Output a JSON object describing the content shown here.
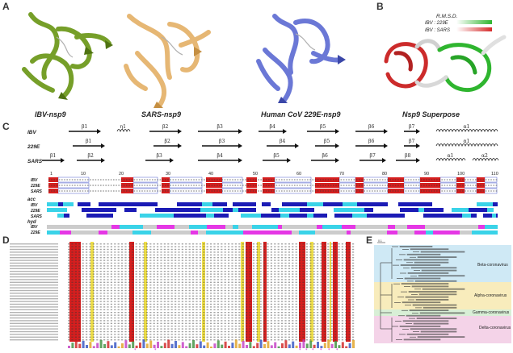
{
  "panels": {
    "a": "A",
    "b": "B",
    "c": "C",
    "d": "D",
    "e": "E"
  },
  "structures": [
    {
      "title": "IBV-nsp9",
      "color": "#6f9a1e"
    },
    {
      "title": "SARS-nsp9",
      "color": "#e6b774"
    },
    {
      "title": "Human CoV 229E-nsp9",
      "color": "#6b78d6"
    },
    {
      "title": "Nsp9 Superpose",
      "color": "#888888"
    }
  ],
  "superpose_legend": {
    "title": "R.M.S.D.",
    "items": [
      {
        "label": "IBV : 229E",
        "color": "#2fb52f"
      },
      {
        "label": "IBV : SARS",
        "color": "#d62b2b"
      }
    ]
  },
  "alignment": {
    "rows": [
      "IBV",
      "229E",
      "SARS"
    ],
    "track_labels": [
      "acc",
      "hyd"
    ],
    "ss_rows": [
      [
        "β1",
        "η1",
        "β2",
        "β3",
        "β4",
        "β5",
        "β6",
        "β7",
        "α1"
      ],
      [
        "β1",
        "β2",
        "β3",
        "β4",
        "β5",
        "β6",
        "β7",
        "α1"
      ],
      [
        "β1",
        "β2",
        "β3",
        "β4",
        "β5",
        "β6",
        "β7",
        "β8",
        "α1",
        "α2"
      ]
    ],
    "numbers": [
      "1",
      "10",
      "20",
      "30",
      "40",
      "50",
      "60",
      "70",
      "80",
      "90",
      "100",
      "110"
    ]
  },
  "tree": {
    "clades": [
      {
        "label": "Beta-coronavirus",
        "color": "#cfe9f5"
      },
      {
        "label": "Alpha-coronavirus",
        "color": "#f8ecbc"
      },
      {
        "label": "Gamma-coronavirus",
        "color": "#d8efd6"
      },
      {
        "label": "Delta-coronavirus",
        "color": "#f4d3e8"
      }
    ],
    "scale": "0.1"
  }
}
